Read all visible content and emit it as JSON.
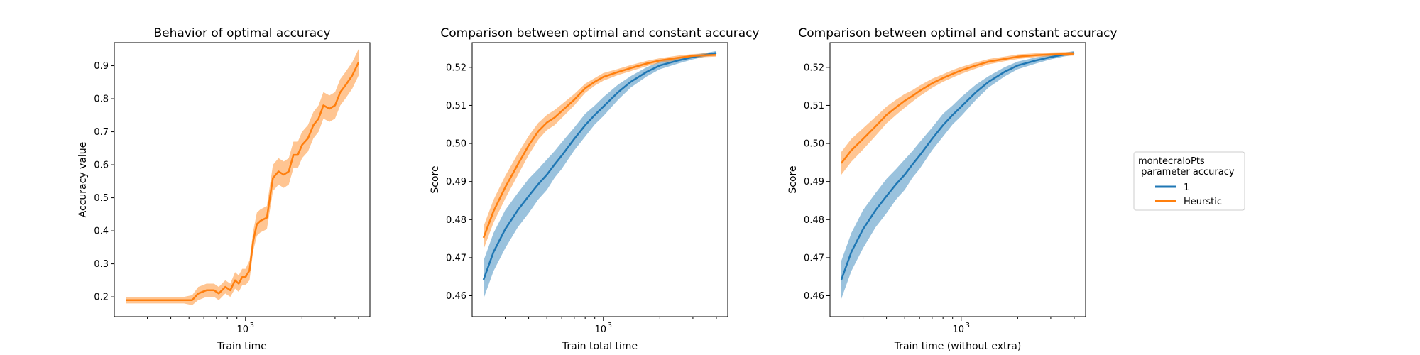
{
  "chart_data": [
    {
      "type": "line",
      "title": "Behavior of optimal accuracy",
      "xlabel": "Train time",
      "ylabel": "Accuracy value",
      "xscale": "log",
      "xlim": [
        200,
        4600
      ],
      "ylim": [
        0.14,
        0.97
      ],
      "xticks": [
        {
          "value": 1000,
          "label": "10",
          "sup": "3"
        }
      ],
      "yticks": [
        {
          "value": 0.2,
          "label": "0.2"
        },
        {
          "value": 0.3,
          "label": "0.3"
        },
        {
          "value": 0.4,
          "label": "0.4"
        },
        {
          "value": 0.5,
          "label": "0.5"
        },
        {
          "value": 0.6,
          "label": "0.6"
        },
        {
          "value": 0.7,
          "label": "0.7"
        },
        {
          "value": 0.8,
          "label": "0.8"
        },
        {
          "value": 0.9,
          "label": "0.9"
        }
      ],
      "grid": false,
      "series": [
        {
          "color": "#ff7f0e",
          "x": [
            230,
            280,
            350,
            420,
            470,
            520,
            560,
            620,
            680,
            720,
            780,
            830,
            880,
            920,
            960,
            1000,
            1050,
            1100,
            1150,
            1200,
            1300,
            1400,
            1500,
            1600,
            1700,
            1800,
            1900,
            2000,
            2150,
            2300,
            2450,
            2600,
            2800,
            3000,
            3200,
            3400,
            3700,
            4000
          ],
          "y": [
            0.19,
            0.19,
            0.19,
            0.19,
            0.19,
            0.19,
            0.21,
            0.22,
            0.22,
            0.21,
            0.23,
            0.22,
            0.25,
            0.24,
            0.26,
            0.26,
            0.28,
            0.37,
            0.42,
            0.43,
            0.44,
            0.56,
            0.58,
            0.57,
            0.58,
            0.63,
            0.63,
            0.66,
            0.68,
            0.72,
            0.74,
            0.78,
            0.77,
            0.78,
            0.82,
            0.84,
            0.87,
            0.91
          ],
          "band": [
            0.01,
            0.01,
            0.01,
            0.01,
            0.01,
            0.015,
            0.02,
            0.02,
            0.02,
            0.02,
            0.02,
            0.02,
            0.025,
            0.025,
            0.025,
            0.025,
            0.03,
            0.03,
            0.035,
            0.035,
            0.035,
            0.04,
            0.04,
            0.04,
            0.04,
            0.04,
            0.04,
            0.04,
            0.04,
            0.04,
            0.04,
            0.04,
            0.04,
            0.04,
            0.04,
            0.04,
            0.04,
            0.04
          ]
        }
      ]
    },
    {
      "type": "line",
      "title": "Comparison between optimal and constant accuracy",
      "xlabel": "Train total time",
      "ylabel": "Score",
      "xscale": "log",
      "xlim": [
        200,
        4600
      ],
      "ylim": [
        0.4545,
        0.5265
      ],
      "xticks": [
        {
          "value": 1000,
          "label": "10",
          "sup": "3"
        }
      ],
      "yticks": [
        {
          "value": 0.46,
          "label": "0.46"
        },
        {
          "value": 0.47,
          "label": "0.47"
        },
        {
          "value": 0.48,
          "label": "0.48"
        },
        {
          "value": 0.49,
          "label": "0.49"
        },
        {
          "value": 0.5,
          "label": "0.50"
        },
        {
          "value": 0.51,
          "label": "0.51"
        },
        {
          "value": 0.52,
          "label": "0.52"
        }
      ],
      "grid": false,
      "series": [
        {
          "color": "#1f77b4",
          "x": [
            230,
            260,
            300,
            350,
            400,
            450,
            500,
            550,
            600,
            700,
            800,
            900,
            1000,
            1200,
            1400,
            1700,
            2000,
            2500,
            3000,
            3500,
            4000
          ],
          "y": [
            0.4642,
            0.4715,
            0.4775,
            0.4825,
            0.4862,
            0.4893,
            0.4918,
            0.4945,
            0.4968,
            0.5012,
            0.5048,
            0.5075,
            0.5097,
            0.5135,
            0.5162,
            0.5188,
            0.5205,
            0.5218,
            0.5227,
            0.5233,
            0.5238
          ],
          "band": [
            0.005,
            0.005,
            0.005,
            0.0045,
            0.0045,
            0.004,
            0.004,
            0.0035,
            0.0035,
            0.003,
            0.003,
            0.0025,
            0.0025,
            0.002,
            0.0015,
            0.0012,
            0.001,
            0.0008,
            0.0006,
            0.0005,
            0.0005
          ]
        },
        {
          "color": "#ff7f0e",
          "x": [
            230,
            260,
            300,
            350,
            400,
            450,
            500,
            550,
            600,
            700,
            800,
            900,
            1000,
            1200,
            1400,
            1700,
            2000,
            2500,
            3000,
            3500,
            4000
          ],
          "y": [
            0.4752,
            0.4822,
            0.4885,
            0.4945,
            0.4995,
            0.5032,
            0.5055,
            0.5068,
            0.5085,
            0.5115,
            0.5145,
            0.5162,
            0.5175,
            0.5188,
            0.5198,
            0.521,
            0.5218,
            0.5225,
            0.523,
            0.5232,
            0.5233
          ],
          "band": [
            0.003,
            0.003,
            0.003,
            0.0028,
            0.0025,
            0.0022,
            0.002,
            0.002,
            0.0018,
            0.0015,
            0.0012,
            0.001,
            0.001,
            0.0008,
            0.0008,
            0.0007,
            0.0006,
            0.0006,
            0.0005,
            0.0005,
            0.0005
          ]
        }
      ]
    },
    {
      "type": "line",
      "title": "Comparison between optimal and constant accuracy",
      "xlabel": "Train time (without extra)",
      "ylabel": "Score",
      "xscale": "log",
      "xlim": [
        200,
        4600
      ],
      "ylim": [
        0.4545,
        0.5265
      ],
      "xticks": [
        {
          "value": 1000,
          "label": "10",
          "sup": "3"
        }
      ],
      "yticks": [
        {
          "value": 0.46,
          "label": "0.46"
        },
        {
          "value": 0.47,
          "label": "0.47"
        },
        {
          "value": 0.48,
          "label": "0.48"
        },
        {
          "value": 0.49,
          "label": "0.49"
        },
        {
          "value": 0.5,
          "label": "0.50"
        },
        {
          "value": 0.51,
          "label": "0.51"
        },
        {
          "value": 0.52,
          "label": "0.52"
        }
      ],
      "grid": false,
      "legend": {
        "title_lines": [
          "montecraloPts",
          " parameter accuracy"
        ],
        "entries": [
          {
            "label": "1",
            "color": "#1f77b4"
          },
          {
            "label": "Heurstic",
            "color": "#ff7f0e"
          }
        ],
        "placement": "outside-right"
      },
      "series": [
        {
          "name": "1",
          "color": "#1f77b4",
          "x": [
            230,
            260,
            300,
            350,
            400,
            450,
            500,
            550,
            600,
            700,
            800,
            900,
            1000,
            1200,
            1400,
            1700,
            2000,
            2500,
            3000,
            3500,
            4000
          ],
          "y": [
            0.4642,
            0.4715,
            0.4775,
            0.4825,
            0.4862,
            0.4893,
            0.4918,
            0.4945,
            0.4968,
            0.5012,
            0.5048,
            0.5075,
            0.5097,
            0.5135,
            0.5162,
            0.5188,
            0.5205,
            0.5218,
            0.5227,
            0.5233,
            0.5238
          ],
          "band": [
            0.005,
            0.005,
            0.005,
            0.0045,
            0.0045,
            0.004,
            0.004,
            0.0035,
            0.0035,
            0.003,
            0.003,
            0.0025,
            0.0025,
            0.002,
            0.0015,
            0.0012,
            0.001,
            0.0008,
            0.0006,
            0.0005,
            0.0005
          ]
        },
        {
          "name": "Heurstic",
          "color": "#ff7f0e",
          "x": [
            230,
            260,
            300,
            350,
            400,
            450,
            500,
            550,
            600,
            700,
            800,
            900,
            1000,
            1200,
            1400,
            1700,
            2000,
            2500,
            3000,
            3500,
            4000
          ],
          "y": [
            0.4948,
            0.4982,
            0.5012,
            0.5045,
            0.5075,
            0.5095,
            0.5112,
            0.5125,
            0.5138,
            0.5158,
            0.5172,
            0.5183,
            0.5192,
            0.5205,
            0.5215,
            0.5222,
            0.5228,
            0.5232,
            0.5234,
            0.5235,
            0.5236
          ],
          "band": [
            0.003,
            0.003,
            0.0028,
            0.0025,
            0.0022,
            0.002,
            0.0018,
            0.0015,
            0.0014,
            0.0012,
            0.001,
            0.001,
            0.0009,
            0.0008,
            0.0007,
            0.0006,
            0.0006,
            0.0005,
            0.0005,
            0.0005,
            0.0005
          ]
        }
      ]
    }
  ]
}
